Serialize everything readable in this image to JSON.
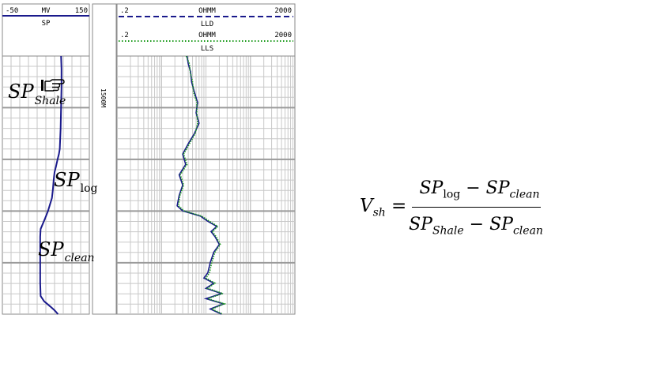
{
  "sp_track": {
    "scale_left": "-50",
    "unit": "MV",
    "scale_right": "150",
    "curve_name": "SP",
    "curve_color": "#1a1a8c"
  },
  "depth_track": {
    "depth_label": "1500M"
  },
  "resistivity_track": {
    "lld": {
      "scale_left": ".2",
      "unit": "OHMM",
      "scale_right": "2000",
      "curve_name": "LLD",
      "color": "#1a1a8c",
      "style": "dashed"
    },
    "lls": {
      "scale_left": ".2",
      "unit": "OHMM",
      "scale_right": "2000",
      "curve_name": "LLS",
      "color": "#1a9a1a",
      "style": "dotted"
    },
    "scale": "log"
  },
  "annotations": {
    "sp_shale": {
      "main": "SP",
      "sub": "Shale"
    },
    "pointer_icon": "pointing-hand-icon",
    "sp_log": {
      "main": "SP",
      "sub": "log"
    },
    "sp_clean": {
      "main": "SP",
      "sub": "clean"
    }
  },
  "equation": {
    "lhs": "V",
    "lhs_sub": "sh",
    "equals": "=",
    "num_a": "SP",
    "num_a_sub": "log",
    "minus": "−",
    "num_b": "SP",
    "num_b_sub": "clean",
    "den_a": "SP",
    "den_a_sub": "Shale",
    "den_b": "SP",
    "den_b_sub": "clean"
  },
  "chart_data": [
    {
      "type": "line",
      "name": "SP",
      "xlim": [
        -50,
        150
      ],
      "unit": "MV",
      "points_relative_depth": [
        [
          0.0,
          85
        ],
        [
          0.05,
          86
        ],
        [
          0.12,
          86
        ],
        [
          0.2,
          85
        ],
        [
          0.28,
          84
        ],
        [
          0.32,
          83
        ],
        [
          0.36,
          82
        ],
        [
          0.38,
          80
        ],
        [
          0.4,
          77
        ],
        [
          0.43,
          73
        ],
        [
          0.45,
          70
        ],
        [
          0.48,
          68
        ],
        [
          0.52,
          66
        ],
        [
          0.55,
          64
        ],
        [
          0.6,
          55
        ],
        [
          0.63,
          48
        ],
        [
          0.65,
          43
        ],
        [
          0.67,
          38
        ],
        [
          0.7,
          37
        ],
        [
          0.8,
          37
        ],
        [
          0.88,
          37
        ],
        [
          0.93,
          38
        ],
        [
          0.95,
          46
        ],
        [
          0.97,
          60
        ],
        [
          0.985,
          70
        ],
        [
          1.0,
          78
        ]
      ]
    },
    {
      "type": "line",
      "name": "LLD",
      "scale": "log",
      "xlim": [
        0.2,
        2000
      ],
      "points_relative_depth": [
        [
          0.0,
          7.5
        ],
        [
          0.03,
          8
        ],
        [
          0.06,
          9
        ],
        [
          0.1,
          9.5
        ],
        [
          0.14,
          11
        ],
        [
          0.18,
          13
        ],
        [
          0.22,
          12
        ],
        [
          0.26,
          14
        ],
        [
          0.3,
          11
        ],
        [
          0.34,
          8
        ],
        [
          0.38,
          6
        ],
        [
          0.42,
          7
        ],
        [
          0.46,
          5
        ],
        [
          0.5,
          6
        ],
        [
          0.54,
          5
        ],
        [
          0.58,
          4.5
        ],
        [
          0.6,
          6
        ],
        [
          0.62,
          15
        ],
        [
          0.64,
          22
        ],
        [
          0.66,
          35
        ],
        [
          0.68,
          26
        ],
        [
          0.7,
          32
        ],
        [
          0.73,
          40
        ],
        [
          0.76,
          30
        ],
        [
          0.8,
          25
        ],
        [
          0.84,
          22
        ],
        [
          0.86,
          18
        ],
        [
          0.88,
          30
        ],
        [
          0.9,
          20
        ],
        [
          0.92,
          45
        ],
        [
          0.94,
          20
        ],
        [
          0.96,
          50
        ],
        [
          0.98,
          25
        ],
        [
          1.0,
          45
        ]
      ]
    },
    {
      "type": "line",
      "name": "LLS",
      "scale": "log",
      "xlim": [
        0.2,
        2000
      ],
      "points_relative_depth": [
        [
          0.0,
          7.2
        ],
        [
          0.03,
          8.5
        ],
        [
          0.06,
          8.8
        ],
        [
          0.1,
          10
        ],
        [
          0.14,
          10.5
        ],
        [
          0.18,
          12.5
        ],
        [
          0.22,
          12.5
        ],
        [
          0.26,
          13
        ],
        [
          0.3,
          11.5
        ],
        [
          0.34,
          8.5
        ],
        [
          0.38,
          6.3
        ],
        [
          0.42,
          7.5
        ],
        [
          0.46,
          5.3
        ],
        [
          0.5,
          6.3
        ],
        [
          0.54,
          5.2
        ],
        [
          0.58,
          4.8
        ],
        [
          0.6,
          6.5
        ],
        [
          0.62,
          16
        ],
        [
          0.64,
          24
        ],
        [
          0.66,
          37
        ],
        [
          0.68,
          28
        ],
        [
          0.7,
          34
        ],
        [
          0.73,
          42
        ],
        [
          0.76,
          32
        ],
        [
          0.8,
          27
        ],
        [
          0.84,
          24
        ],
        [
          0.86,
          20
        ],
        [
          0.88,
          32
        ],
        [
          0.9,
          22
        ],
        [
          0.92,
          48
        ],
        [
          0.94,
          22
        ],
        [
          0.96,
          52
        ],
        [
          0.98,
          27
        ],
        [
          1.0,
          48
        ]
      ]
    }
  ]
}
